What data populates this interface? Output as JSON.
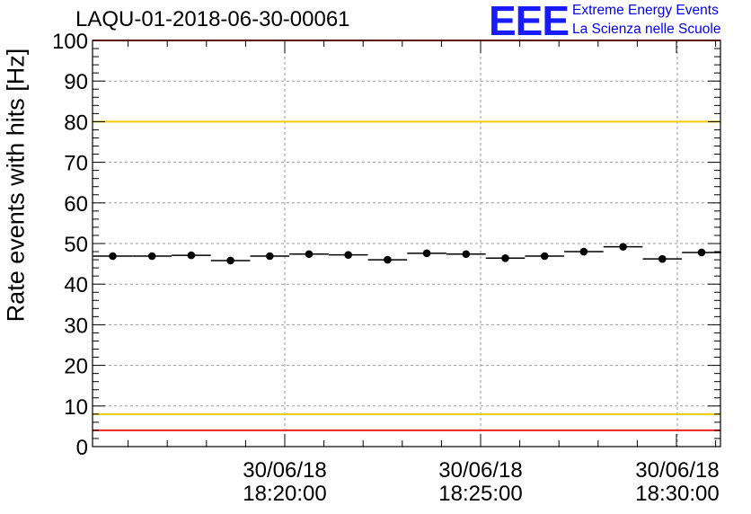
{
  "chart_data": {
    "type": "scatter",
    "title": "LAQU-01-2018-06-30-00061",
    "ylabel": "Rate events with hits [Hz]",
    "xlabel": "",
    "ylim": [
      0,
      100
    ],
    "y_ticks": [
      0,
      10,
      20,
      30,
      40,
      50,
      60,
      70,
      80,
      90,
      100
    ],
    "x_ticks": [
      {
        "date": "30/06/18",
        "time": "18:20:00"
      },
      {
        "date": "30/06/18",
        "time": "18:25:00"
      },
      {
        "date": "30/06/18",
        "time": "18:30:00"
      }
    ],
    "grid": true,
    "series": [
      {
        "name": "rate",
        "values": [
          46.9,
          46.9,
          47.1,
          45.8,
          46.9,
          47.4,
          47.2,
          46.0,
          47.6,
          47.4,
          46.4,
          46.9,
          48.0,
          49.2,
          46.2,
          47.8
        ]
      }
    ],
    "reference_lines": [
      {
        "value": 100,
        "color": "#ee2222"
      },
      {
        "value": 80,
        "color": "#f0cc00"
      },
      {
        "value": 8,
        "color": "#f0cc00"
      },
      {
        "value": 4,
        "color": "#ee2222"
      }
    ]
  },
  "logo": {
    "mark": "EEE",
    "line1": "Extreme Energy Events",
    "line2": "La Scienza nelle Scuole",
    "color": "#0000ee"
  }
}
